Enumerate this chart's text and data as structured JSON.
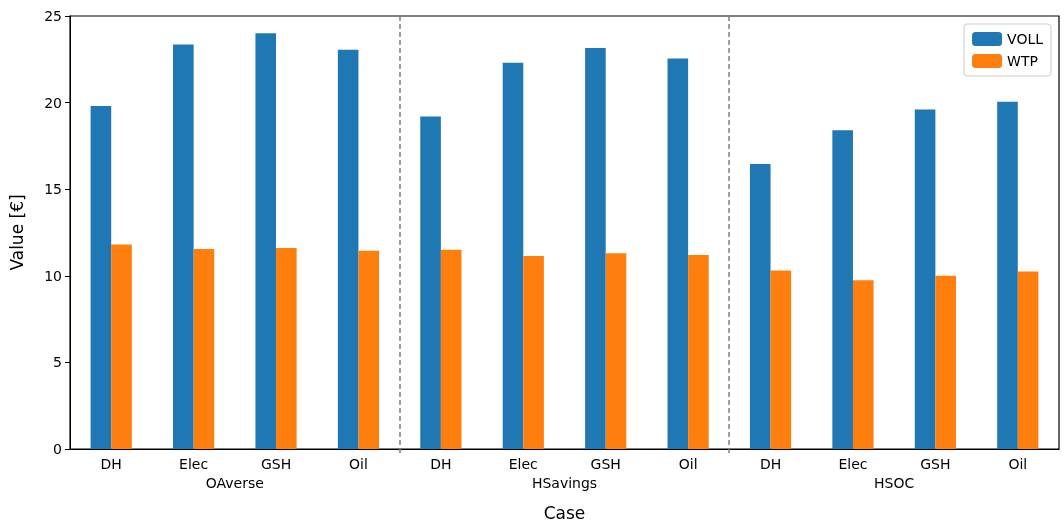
{
  "chart_data": {
    "type": "bar",
    "xlabel": "Case",
    "ylabel": "Value [€]",
    "categories": [
      "DH",
      "Elec",
      "GSH",
      "Oil",
      "DH",
      "Elec",
      "GSH",
      "Oil",
      "DH",
      "Elec",
      "GSH",
      "Oil"
    ],
    "series": [
      {
        "name": "VOLL",
        "color": "#1f77b4",
        "values": [
          19.8,
          23.35,
          24.0,
          23.05,
          19.2,
          22.3,
          23.15,
          22.55,
          16.45,
          18.4,
          19.6,
          20.05
        ]
      },
      {
        "name": "WTP",
        "color": "#ff7f0e",
        "values": [
          11.8,
          11.55,
          11.6,
          11.45,
          11.5,
          11.15,
          11.3,
          11.2,
          10.3,
          9.75,
          10.0,
          10.25
        ]
      }
    ],
    "annotations": [
      "OAverse",
      "HSavings",
      "HSOC"
    ],
    "ylim": [
      0,
      25
    ],
    "yticks": [
      0,
      5,
      10,
      15,
      20,
      25
    ],
    "grid": false,
    "legend": "top right"
  }
}
